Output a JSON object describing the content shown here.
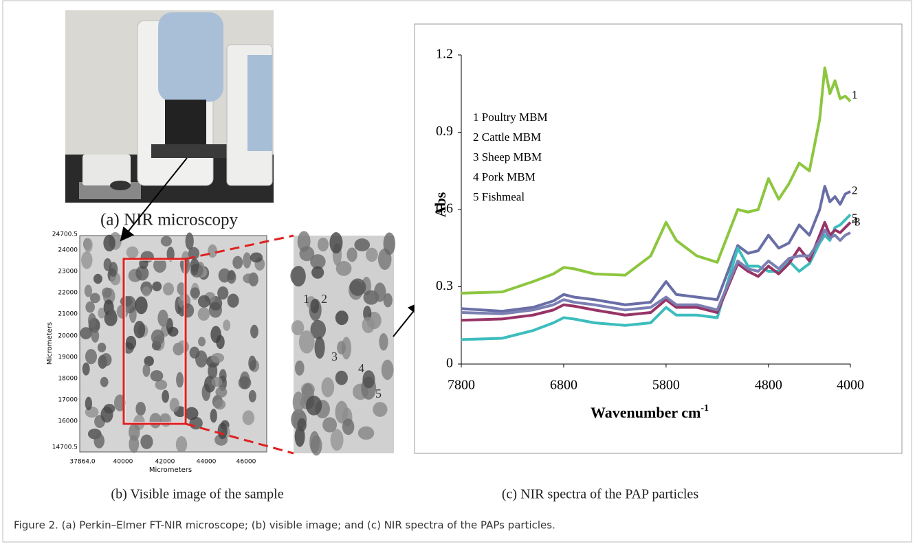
{
  "image_a": {
    "caption": "(a) NIR microscopy"
  },
  "image_b": {
    "caption": "(b) Visible image of the sample",
    "ylabel": "Micrometers",
    "xlabel": "Micrometers",
    "yticks": [
      "24700.5",
      "24000",
      "23000",
      "22000",
      "21000",
      "20000",
      "19000",
      "18000",
      "17000",
      "16000",
      "14700.5"
    ],
    "xticks": [
      "37864.0",
      "40000",
      "42000",
      "44000",
      "46000"
    ],
    "particle_labels": [
      "1",
      "2",
      "3",
      "4",
      "5"
    ]
  },
  "chart_data": {
    "type": "line",
    "caption": "(c) NIR spectra of the PAP particles",
    "ylabel": "Abs",
    "xlabel": "Wavenumber cm",
    "xlabel_sup": "-1",
    "xlim": [
      7800,
      4000
    ],
    "xticks": [
      7800,
      6800,
      5800,
      4800,
      4000
    ],
    "ylim": [
      0,
      1.2
    ],
    "yticks": [
      0,
      0.3,
      0.6,
      0.9,
      1.2
    ],
    "x": [
      7800,
      7400,
      7100,
      6900,
      6800,
      6700,
      6500,
      6200,
      5950,
      5800,
      5700,
      5500,
      5300,
      5100,
      5000,
      4900,
      4800,
      4700,
      4600,
      4500,
      4400,
      4300,
      4250,
      4200,
      4150,
      4100,
      4050,
      4000
    ],
    "series": [
      {
        "name": "1 Poultry MBM",
        "label": "1",
        "color": "#8dc63f",
        "values": [
          0.275,
          0.28,
          0.32,
          0.35,
          0.375,
          0.37,
          0.35,
          0.345,
          0.42,
          0.55,
          0.48,
          0.42,
          0.395,
          0.6,
          0.59,
          0.6,
          0.72,
          0.64,
          0.7,
          0.78,
          0.75,
          0.95,
          1.15,
          1.05,
          1.1,
          1.03,
          1.04,
          1.02
        ]
      },
      {
        "name": "2 Cattle MBM",
        "label": "2",
        "color": "#6a6ea6",
        "values": [
          0.215,
          0.205,
          0.22,
          0.245,
          0.27,
          0.26,
          0.25,
          0.23,
          0.24,
          0.32,
          0.27,
          0.26,
          0.25,
          0.46,
          0.43,
          0.44,
          0.5,
          0.45,
          0.47,
          0.54,
          0.5,
          0.6,
          0.69,
          0.63,
          0.65,
          0.62,
          0.66,
          0.67
        ]
      },
      {
        "name": "3 Sheep MBM",
        "label": "3",
        "color": "#3dbdbd",
        "values": [
          0.095,
          0.1,
          0.13,
          0.16,
          0.18,
          0.175,
          0.16,
          0.15,
          0.16,
          0.22,
          0.19,
          0.19,
          0.18,
          0.45,
          0.38,
          0.38,
          0.36,
          0.36,
          0.4,
          0.36,
          0.39,
          0.47,
          0.5,
          0.48,
          0.53,
          0.54,
          0.56,
          0.58
        ]
      },
      {
        "name": "4 Pork MBM",
        "label": "4",
        "color": "#973466",
        "values": [
          0.17,
          0.175,
          0.19,
          0.21,
          0.23,
          0.225,
          0.21,
          0.19,
          0.2,
          0.25,
          0.22,
          0.22,
          0.2,
          0.39,
          0.36,
          0.34,
          0.38,
          0.35,
          0.39,
          0.45,
          0.4,
          0.5,
          0.55,
          0.5,
          0.52,
          0.51,
          0.53,
          0.55
        ]
      },
      {
        "name": "5 Fishmeal",
        "label": "5",
        "color": "#7b7fb2",
        "values": [
          0.2,
          0.195,
          0.21,
          0.23,
          0.25,
          0.24,
          0.23,
          0.21,
          0.22,
          0.26,
          0.23,
          0.23,
          0.21,
          0.4,
          0.37,
          0.36,
          0.4,
          0.37,
          0.41,
          0.42,
          0.42,
          0.48,
          0.52,
          0.49,
          0.5,
          0.48,
          0.5,
          0.51
        ]
      }
    ]
  },
  "figure_caption": "Figure 2. (a) Perkin–Elmer FT-NIR microscope; (b) visible image; and (c) NIR spectra of the PAPs particles."
}
